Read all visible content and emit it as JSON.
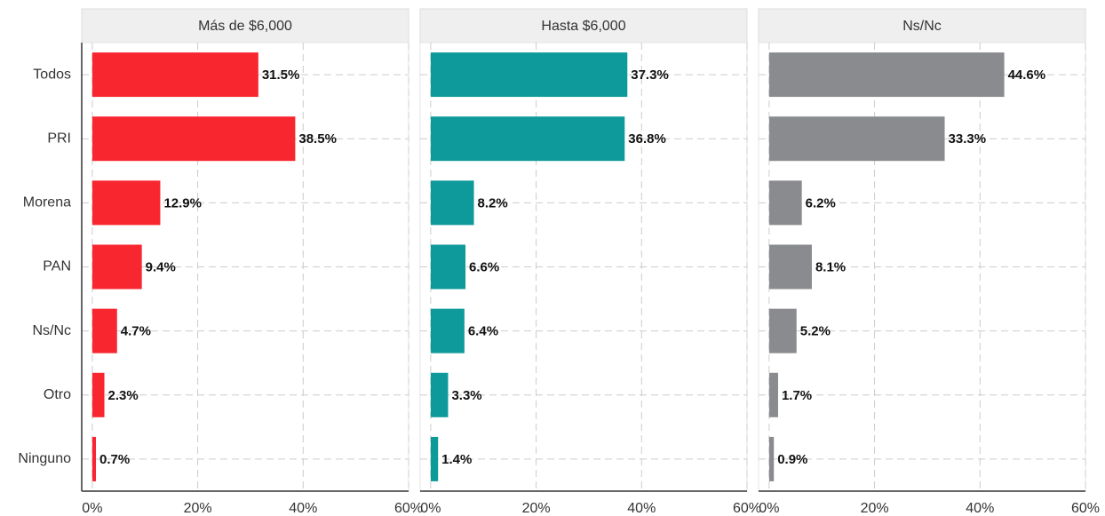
{
  "chart_data": [
    {
      "type": "bar",
      "title": "Más de $6,000",
      "color": "#f8262f",
      "categories": [
        "Todos",
        "PRI",
        "Morena",
        "PAN",
        "Ns/Nc",
        "Otro",
        "Ninguno"
      ],
      "values": [
        31.5,
        38.5,
        12.9,
        9.4,
        4.7,
        2.3,
        0.7
      ],
      "value_labels": [
        "31.5%",
        "38.5%",
        "12.9%",
        "9.4%",
        "4.7%",
        "2.3%",
        "0.7%"
      ],
      "xlim": [
        -2,
        60
      ],
      "xticks": [
        {
          "value": 0,
          "label": "0%"
        },
        {
          "value": 20,
          "label": "20%"
        },
        {
          "value": 40,
          "label": "40%"
        },
        {
          "value": 60,
          "label": "60%"
        }
      ],
      "grid": true
    },
    {
      "type": "bar",
      "title": "Hasta $6,000",
      "color": "#0e9a9b",
      "values": [
        37.3,
        36.8,
        8.2,
        6.6,
        6.4,
        3.3,
        1.4
      ],
      "value_labels": [
        "37.3%",
        "36.8%",
        "8.2%",
        "6.6%",
        "6.4%",
        "3.3%",
        "1.4%"
      ],
      "xlim": [
        -2,
        60
      ],
      "xticks": [
        {
          "value": 0,
          "label": "0%"
        },
        {
          "value": 20,
          "label": "20%"
        },
        {
          "value": 40,
          "label": "40%"
        },
        {
          "value": 60,
          "label": "60%"
        }
      ],
      "grid": true
    },
    {
      "type": "bar",
      "title": "Ns/Nc",
      "color": "#8a8b8f",
      "values": [
        44.6,
        33.3,
        6.2,
        8.1,
        5.2,
        1.7,
        0.9
      ],
      "value_labels": [
        "44.6%",
        "33.3%",
        "6.2%",
        "8.1%",
        "5.2%",
        "1.7%",
        "0.9%"
      ],
      "xlim": [
        -2,
        60
      ],
      "xticks": [
        {
          "value": 0,
          "label": "0%"
        },
        {
          "value": 20,
          "label": "20%"
        },
        {
          "value": 40,
          "label": "40%"
        },
        {
          "value": 60,
          "label": "60%"
        }
      ],
      "grid": true
    }
  ]
}
